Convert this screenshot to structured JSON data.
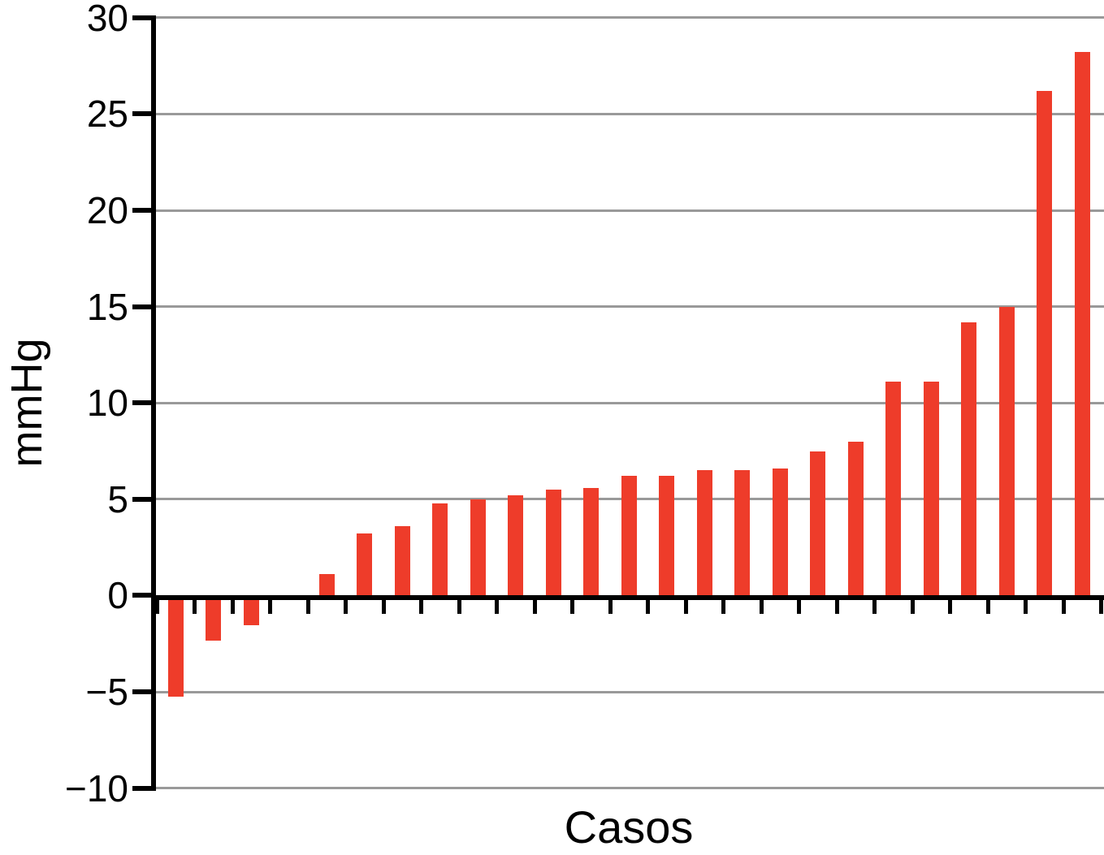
{
  "chart_data": {
    "type": "bar",
    "title": "",
    "xlabel": "Casos",
    "ylabel": "mmHg",
    "n_cases": 25,
    "values": [
      -5.2,
      -2.3,
      -1.5,
      0,
      1.1,
      3.2,
      3.6,
      4.8,
      5.0,
      5.2,
      5.5,
      5.6,
      6.2,
      6.2,
      6.5,
      6.5,
      6.6,
      7.5,
      8.0,
      11.1,
      11.1,
      14.2,
      15.0,
      26.2,
      28.2
    ],
    "ylim": [
      -10,
      30
    ],
    "ytick_step": 5,
    "ytick_values": [
      30,
      25,
      20,
      15,
      10,
      5,
      0,
      -5,
      -10
    ],
    "ytick_labels": [
      "30",
      "25",
      "20",
      "15",
      "10",
      "5",
      "0",
      "−5",
      "−10"
    ],
    "x_tick_labels_visible": false,
    "grid": true,
    "legend_position": "none",
    "bar_color": "#ee3c2a",
    "grid_color": "#999999",
    "axis_color": "#000000"
  }
}
